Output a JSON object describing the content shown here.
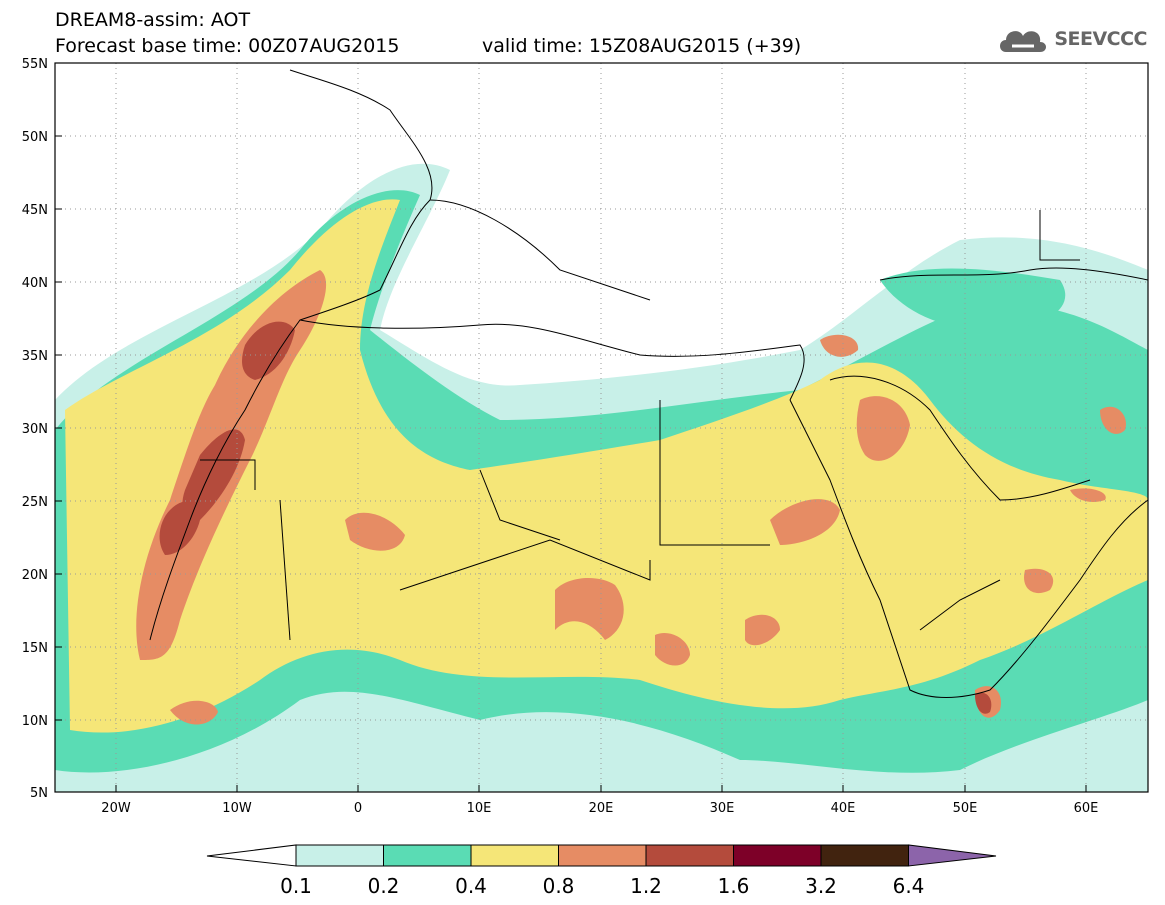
{
  "header": {
    "line1": "DREAM8-assim: AOT",
    "line2": "Forecast base time: 00Z07AUG2015",
    "line3": "valid time: 15Z08AUG2015 (+39)"
  },
  "logo": {
    "text": "SEEVCCC",
    "icon": "cloud-icon"
  },
  "map": {
    "lat_labels": [
      "55N",
      "50N",
      "45N",
      "40N",
      "35N",
      "30N",
      "25N",
      "20N",
      "15N",
      "10N",
      "5N"
    ],
    "lon_labels": [
      "20W",
      "10W",
      "0",
      "10E",
      "20E",
      "30E",
      "40E",
      "50E",
      "60E"
    ],
    "lat_range": [
      5,
      55
    ],
    "lon_range": [
      -25,
      65
    ]
  },
  "colorbar": {
    "ticks": [
      "0.1",
      "0.2",
      "0.4",
      "0.8",
      "1.2",
      "1.6",
      "3.2",
      "6.4"
    ],
    "colors": [
      "#ffffff",
      "#c8f0e8",
      "#5adcb4",
      "#f5e678",
      "#e68c64",
      "#b44b3c",
      "#7d0028",
      "#41230f",
      "#8c64aa"
    ]
  }
}
